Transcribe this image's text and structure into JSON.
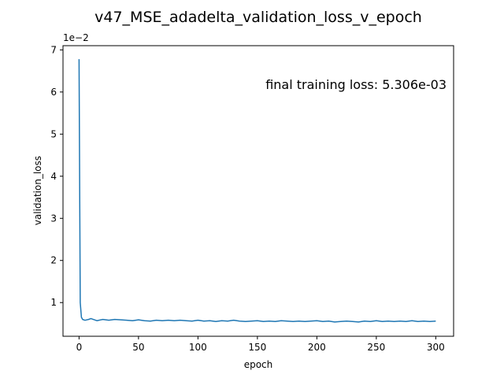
{
  "chart_data": {
    "type": "line",
    "title": "v47_MSE_adadelta_validation_loss_v_epoch",
    "xlabel": "epoch",
    "ylabel": "validation_loss",
    "y_offset_label": "1e−2",
    "annotation": "final training loss: 5.306e-03",
    "xlim": [
      -13.5,
      315
    ],
    "ylim": [
      0.2,
      7.1
    ],
    "y_scale_factor": 0.01,
    "grid": false,
    "x_ticks": [
      {
        "value": 0,
        "label": "0"
      },
      {
        "value": 50,
        "label": "50"
      },
      {
        "value": 100,
        "label": "100"
      },
      {
        "value": 150,
        "label": "150"
      },
      {
        "value": 200,
        "label": "200"
      },
      {
        "value": 250,
        "label": "250"
      },
      {
        "value": 300,
        "label": "300"
      }
    ],
    "y_ticks": [
      {
        "value": 1,
        "label": "1"
      },
      {
        "value": 2,
        "label": "2"
      },
      {
        "value": 3,
        "label": "3"
      },
      {
        "value": 4,
        "label": "4"
      },
      {
        "value": 5,
        "label": "5"
      },
      {
        "value": 6,
        "label": "6"
      },
      {
        "value": 7,
        "label": "7"
      }
    ],
    "series": [
      {
        "color": "#1f77b4",
        "x": [
          0,
          1,
          2,
          3,
          5,
          8,
          10,
          15,
          20,
          25,
          30,
          35,
          40,
          45,
          50,
          55,
          60,
          65,
          70,
          75,
          80,
          85,
          90,
          95,
          100,
          105,
          110,
          115,
          120,
          125,
          130,
          135,
          140,
          145,
          150,
          155,
          160,
          165,
          170,
          175,
          180,
          185,
          190,
          195,
          200,
          205,
          210,
          215,
          220,
          225,
          230,
          235,
          240,
          245,
          250,
          255,
          260,
          265,
          270,
          275,
          280,
          285,
          290,
          295,
          300
        ],
        "y": [
          6.78,
          1.0,
          0.65,
          0.6,
          0.58,
          0.6,
          0.62,
          0.57,
          0.6,
          0.58,
          0.6,
          0.59,
          0.58,
          0.57,
          0.59,
          0.57,
          0.56,
          0.58,
          0.57,
          0.58,
          0.57,
          0.58,
          0.57,
          0.56,
          0.58,
          0.56,
          0.57,
          0.55,
          0.57,
          0.56,
          0.58,
          0.56,
          0.55,
          0.56,
          0.57,
          0.55,
          0.56,
          0.55,
          0.57,
          0.56,
          0.55,
          0.56,
          0.55,
          0.56,
          0.57,
          0.55,
          0.56,
          0.54,
          0.55,
          0.56,
          0.55,
          0.54,
          0.56,
          0.55,
          0.57,
          0.55,
          0.56,
          0.55,
          0.56,
          0.55,
          0.57,
          0.55,
          0.56,
          0.55,
          0.56
        ]
      }
    ]
  }
}
